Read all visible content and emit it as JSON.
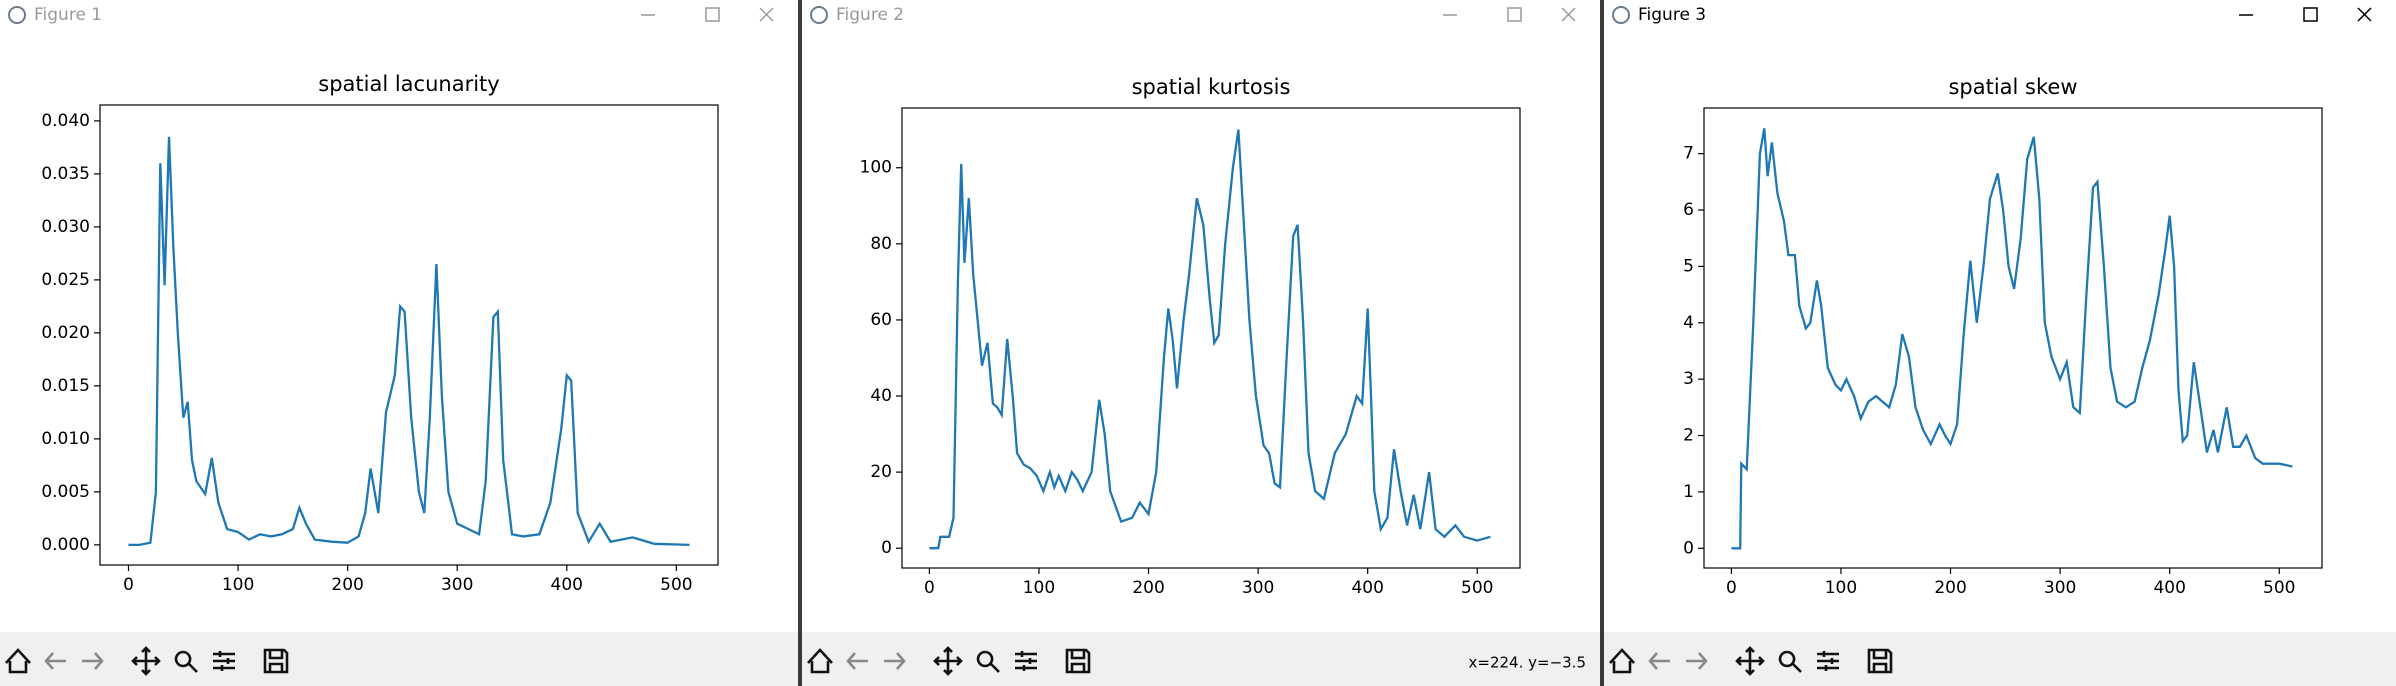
{
  "windows": [
    {
      "title": "Figure 1"
    },
    {
      "title": "Figure 2"
    },
    {
      "title": "Figure 3"
    }
  ],
  "status": "x=224. y=−3.5",
  "chart_data": [
    {
      "type": "line",
      "title": "spatial lacunarity",
      "color": "#1f77b4",
      "x": [
        0,
        10,
        20,
        25,
        29,
        33,
        37,
        41,
        45,
        50,
        54,
        58,
        62,
        70,
        76,
        82,
        90,
        100,
        110,
        120,
        130,
        140,
        150,
        156,
        162,
        170,
        185,
        200,
        210,
        216,
        221,
        228,
        235,
        243,
        248,
        252,
        258,
        265,
        270,
        275,
        281,
        286,
        292,
        300,
        310,
        320,
        326,
        333,
        337,
        342,
        350,
        360,
        375,
        385,
        395,
        400,
        404,
        410,
        420,
        430,
        440,
        460,
        480,
        512
      ],
      "values": [
        0,
        0,
        0.0002,
        0.005,
        0.036,
        0.0245,
        0.0385,
        0.028,
        0.02,
        0.012,
        0.0135,
        0.008,
        0.006,
        0.0048,
        0.0082,
        0.004,
        0.0015,
        0.0012,
        0.0005,
        0.001,
        0.0008,
        0.001,
        0.0015,
        0.0035,
        0.002,
        0.0005,
        0.0003,
        0.0002,
        0.0008,
        0.003,
        0.0072,
        0.003,
        0.0125,
        0.016,
        0.0225,
        0.022,
        0.012,
        0.005,
        0.003,
        0.012,
        0.0265,
        0.014,
        0.005,
        0.002,
        0.0015,
        0.001,
        0.006,
        0.0215,
        0.022,
        0.008,
        0.001,
        0.0008,
        0.001,
        0.004,
        0.011,
        0.016,
        0.0155,
        0.003,
        0.0003,
        0.002,
        0.0003,
        0.0007,
        0.0001,
        0
      ],
      "xlim": [
        -26,
        538
      ],
      "xticks": [
        0,
        100,
        200,
        300,
        400,
        500
      ],
      "ylim": [
        -0.0019,
        0.0415
      ],
      "yticks": [
        {
          "value": 0,
          "label": "0.000"
        },
        {
          "value": 0.005,
          "label": "0.005"
        },
        {
          "value": 0.01,
          "label": "0.010"
        },
        {
          "value": 0.015,
          "label": "0.015"
        },
        {
          "value": 0.02,
          "label": "0.020"
        },
        {
          "value": 0.025,
          "label": "0.025"
        },
        {
          "value": 0.03,
          "label": "0.030"
        },
        {
          "value": 0.035,
          "label": "0.035"
        },
        {
          "value": 0.04,
          "label": "0.040"
        }
      ]
    },
    {
      "type": "line",
      "title": "spatial kurtosis",
      "color": "#1f77b4",
      "x": [
        0,
        8,
        10,
        18,
        22,
        26,
        29,
        32,
        36,
        40,
        44,
        48,
        53,
        58,
        62,
        66,
        71,
        76,
        80,
        86,
        92,
        98,
        104,
        110,
        114,
        118,
        124,
        130,
        135,
        140,
        148,
        155,
        160,
        165,
        175,
        185,
        192,
        200,
        207,
        214,
        218,
        222,
        226,
        232,
        237,
        244,
        250,
        256,
        260,
        264,
        270,
        277,
        282,
        287,
        292,
        298,
        305,
        310,
        315,
        320,
        326,
        332,
        336,
        341,
        346,
        352,
        360,
        370,
        380,
        390,
        395,
        400,
        403,
        406,
        412,
        418,
        424,
        430,
        436,
        442,
        448,
        456,
        462,
        470,
        480,
        488,
        500,
        512
      ],
      "values": [
        0,
        0,
        3,
        3,
        8,
        70,
        101,
        75,
        92,
        72,
        60,
        48,
        54,
        38,
        37,
        35,
        55,
        40,
        25,
        22,
        21,
        19,
        15,
        20,
        16,
        19,
        15,
        20,
        18,
        15,
        20,
        39,
        30,
        15,
        7,
        8,
        12,
        9,
        20,
        50,
        63,
        55,
        42,
        60,
        72,
        92,
        85,
        65,
        54,
        56,
        80,
        100,
        110,
        85,
        60,
        40,
        27,
        25,
        17,
        16,
        50,
        82,
        85,
        60,
        25,
        15,
        13,
        25,
        30,
        40,
        38,
        63,
        40,
        15,
        5,
        8,
        26,
        15,
        6,
        14,
        5,
        20,
        5,
        3,
        6,
        3,
        2,
        3
      ],
      "xlim": [
        -25,
        539
      ],
      "xticks": [
        0,
        100,
        200,
        300,
        400,
        500
      ],
      "ylim": [
        -5.2,
        115.7
      ],
      "yticks": [
        0,
        20,
        40,
        60,
        80,
        100
      ]
    },
    {
      "type": "line",
      "title": "spatial skew",
      "color": "#1f77b4",
      "x": [
        0,
        8,
        9,
        14,
        20,
        26,
        30,
        33,
        37,
        42,
        48,
        52,
        58,
        62,
        68,
        72,
        78,
        82,
        88,
        95,
        100,
        105,
        112,
        118,
        125,
        132,
        138,
        144,
        150,
        156,
        162,
        168,
        175,
        182,
        190,
        195,
        200,
        206,
        212,
        218,
        224,
        230,
        236,
        243,
        248,
        253,
        258,
        264,
        270,
        276,
        281,
        286,
        292,
        300,
        306,
        312,
        318,
        324,
        330,
        334,
        340,
        346,
        352,
        360,
        368,
        375,
        382,
        390,
        396,
        400,
        404,
        408,
        412,
        416,
        422,
        428,
        434,
        440,
        444,
        452,
        458,
        464,
        470,
        478,
        485,
        500,
        512
      ],
      "values": [
        0,
        0,
        1.5,
        1.4,
        4,
        7,
        7.45,
        6.6,
        7.2,
        6.3,
        5.8,
        5.2,
        5.2,
        4.3,
        3.9,
        4,
        4.75,
        4.3,
        3.2,
        2.9,
        2.8,
        3,
        2.7,
        2.3,
        2.6,
        2.7,
        2.6,
        2.5,
        2.9,
        3.8,
        3.4,
        2.5,
        2.1,
        1.85,
        2.2,
        2,
        1.85,
        2.2,
        3.8,
        5.1,
        4,
        5,
        6.2,
        6.65,
        6,
        5,
        4.6,
        5.5,
        6.9,
        7.3,
        6.2,
        4,
        3.4,
        3,
        3.3,
        2.5,
        2.4,
        4.5,
        6.4,
        6.5,
        5,
        3.2,
        2.6,
        2.5,
        2.6,
        3.2,
        3.7,
        4.5,
        5.3,
        5.9,
        5,
        2.8,
        1.9,
        2,
        3.3,
        2.5,
        1.7,
        2.1,
        1.7,
        2.5,
        1.8,
        1.8,
        2,
        1.6,
        1.5,
        1.5,
        1.45
      ],
      "xlim": [
        -25,
        539
      ],
      "xticks": [
        0,
        100,
        200,
        300,
        400,
        500
      ],
      "ylim": [
        -0.35,
        7.81
      ],
      "yticks": [
        0,
        1,
        2,
        3,
        4,
        5,
        6,
        7
      ]
    }
  ]
}
